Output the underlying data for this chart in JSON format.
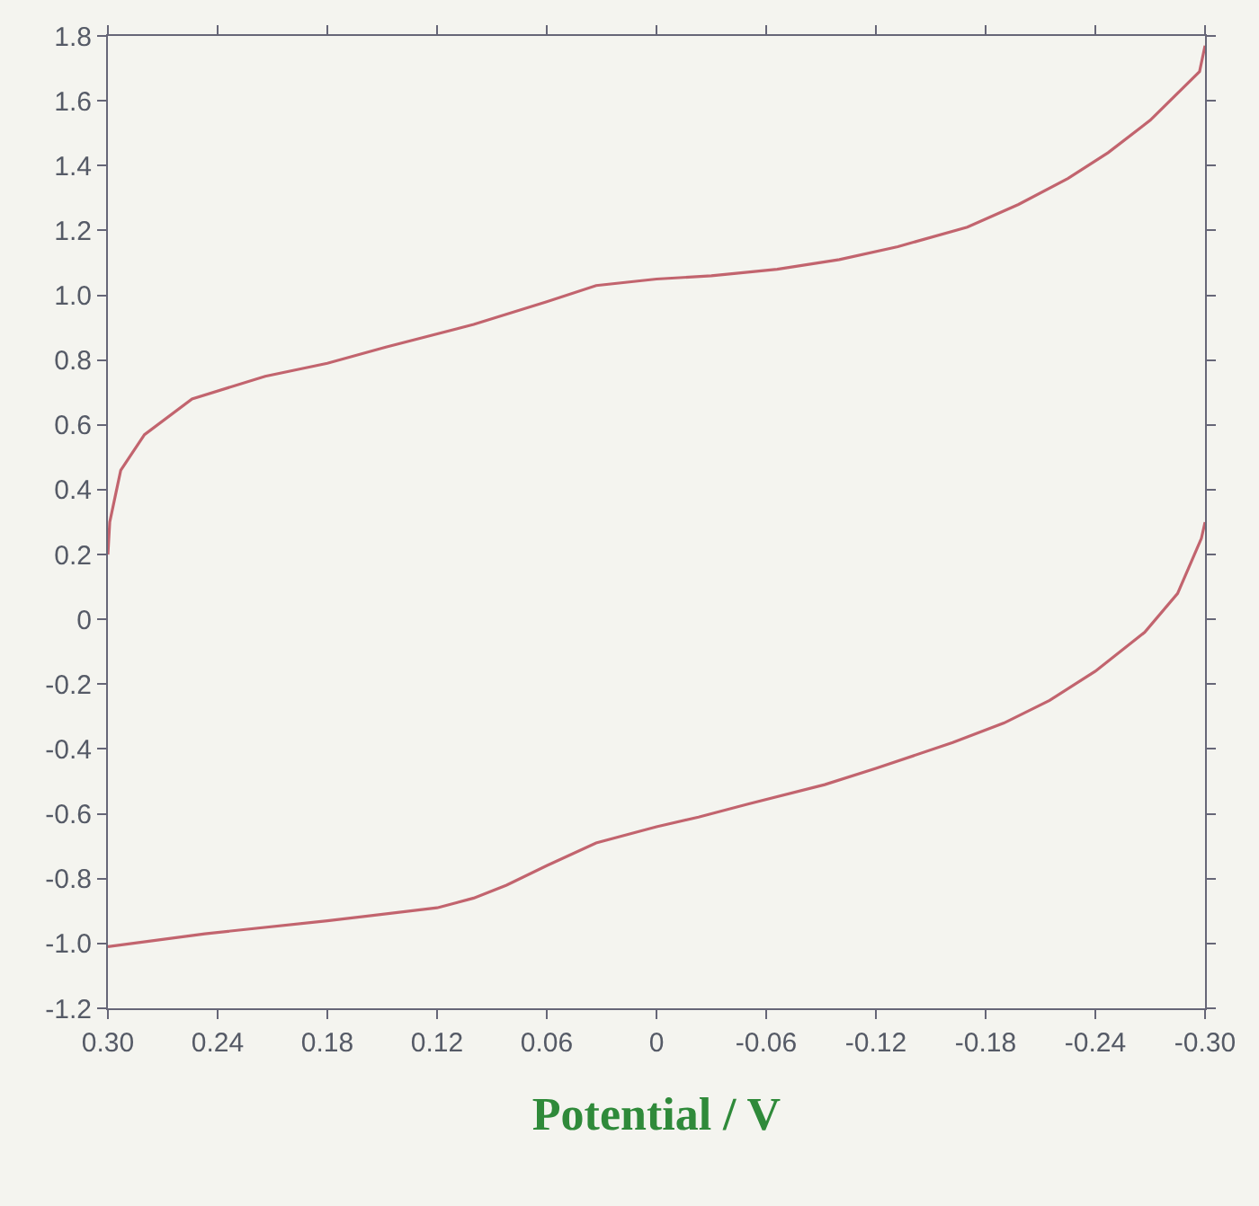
{
  "chart_data": {
    "type": "line",
    "xlabel": "Potential / V",
    "series": [
      {
        "color": "#c2646e",
        "x": [
          0.3,
          0.299,
          0.296,
          0.293,
          0.28,
          0.254,
          0.214,
          0.18,
          0.148,
          0.1,
          0.06,
          0.033,
          0.0,
          -0.03,
          -0.066,
          -0.1,
          -0.132,
          -0.17,
          -0.198,
          -0.225,
          -0.247,
          -0.27,
          -0.297,
          -0.3,
          null,
          -0.3,
          -0.298,
          -0.285,
          -0.267,
          -0.24,
          -0.215,
          -0.19,
          -0.162,
          -0.12,
          -0.092,
          -0.05,
          -0.023,
          0.0,
          0.033,
          0.06,
          0.082,
          0.1,
          0.12,
          0.18,
          0.247,
          0.3
        ],
        "values": [
          0.2,
          0.3,
          0.38,
          0.46,
          0.57,
          0.68,
          0.75,
          0.79,
          0.84,
          0.91,
          0.98,
          1.03,
          1.05,
          1.06,
          1.08,
          1.11,
          1.15,
          1.21,
          1.28,
          1.36,
          1.44,
          1.54,
          1.69,
          1.77,
          null,
          0.3,
          0.25,
          0.08,
          -0.04,
          -0.16,
          -0.25,
          -0.32,
          -0.38,
          -0.46,
          -0.51,
          -0.57,
          -0.61,
          -0.64,
          -0.69,
          -0.76,
          -0.82,
          -0.86,
          -0.89,
          -0.93,
          -0.97,
          -1.01
        ]
      }
    ],
    "xlim": [
      0.3,
      -0.3
    ],
    "xticks": [
      {
        "value": 0.3,
        "label": "0.30"
      },
      0.24,
      0.18,
      0.12,
      0.06,
      0,
      -0.06,
      -0.12,
      -0.18,
      -0.24,
      {
        "value": -0.3,
        "label": "-0.30"
      }
    ],
    "ylim": [
      -1.2,
      1.8
    ],
    "yticks": [
      -1.2,
      {
        "value": -1,
        "label": "-1.0"
      },
      -0.8,
      -0.6,
      -0.4,
      -0.2,
      0,
      0.2,
      0.4,
      0.6,
      0.8,
      {
        "value": 1,
        "label": "1.0"
      },
      1.2,
      1.4,
      1.6,
      1.8
    ],
    "grid": false,
    "line_style": "solid",
    "marker": "none"
  }
}
